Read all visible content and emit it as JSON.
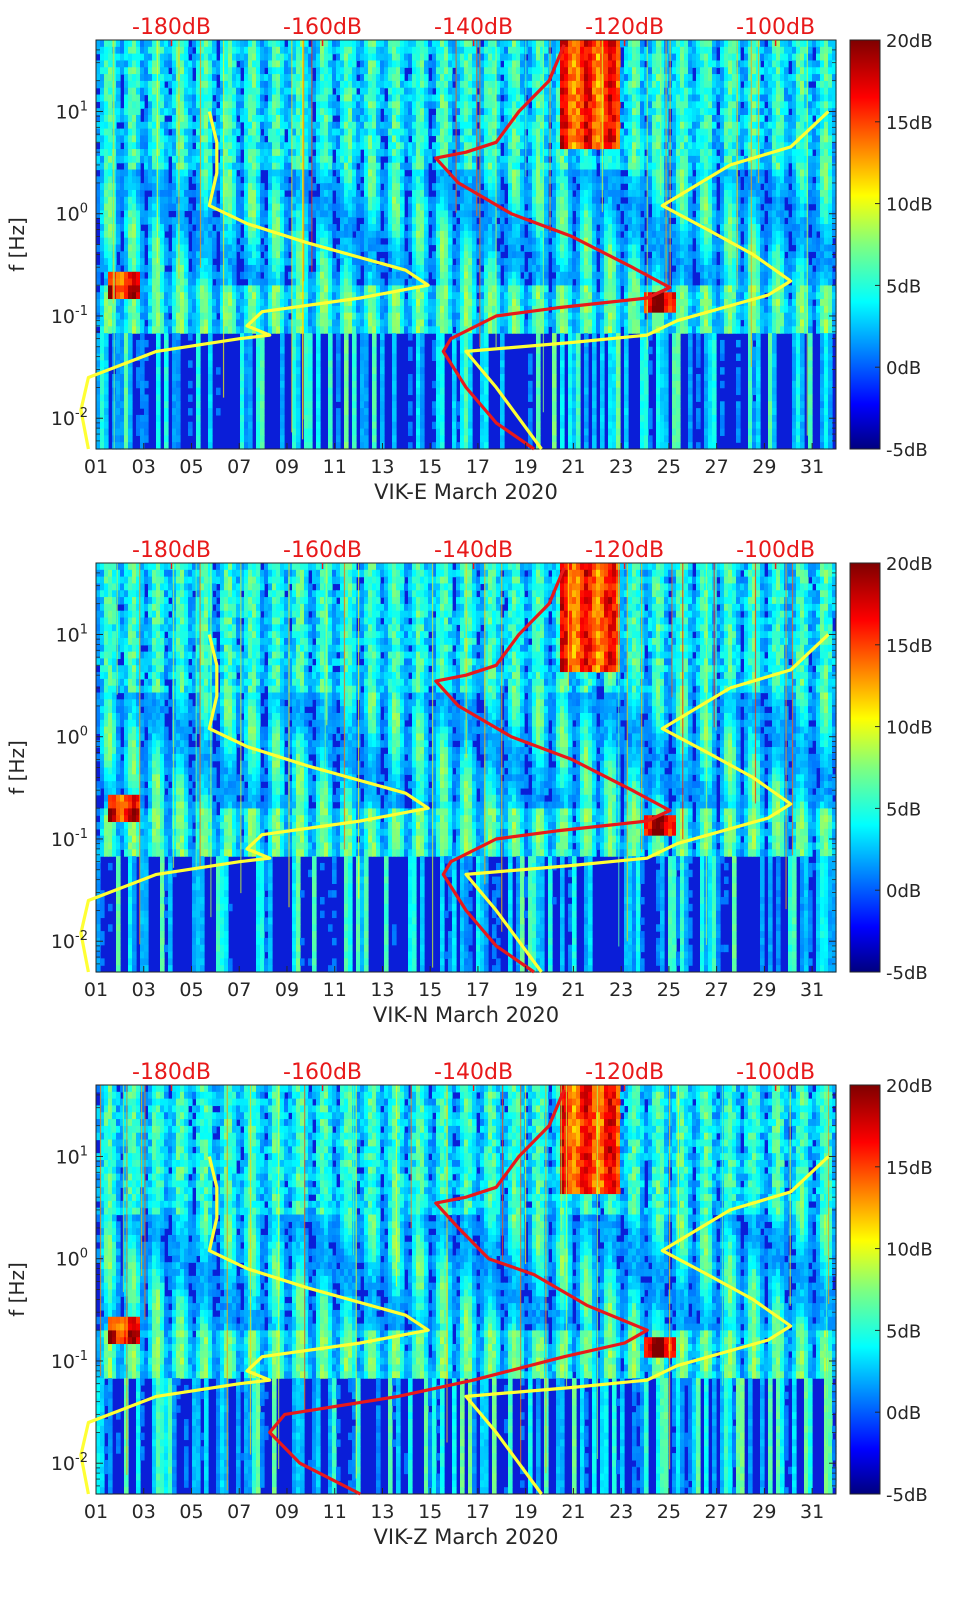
{
  "chart_data": [
    {
      "type": "heatmap",
      "station": "VIK-E",
      "xlabel": "VIK-E March 2020",
      "ylabel": "f [Hz]",
      "x_ticks": [
        "01",
        "03",
        "05",
        "07",
        "09",
        "11",
        "13",
        "15",
        "17",
        "19",
        "21",
        "23",
        "25",
        "27",
        "29",
        "31"
      ],
      "x_range_days": [
        1,
        32
      ],
      "y_scale": "log",
      "y_ticks": [
        "10^-2",
        "10^-1",
        "10^0",
        "10^1"
      ],
      "y_range_hz": [
        0.005,
        50
      ],
      "colorbar": {
        "ticks": [
          "-5dB",
          "0dB",
          "5dB",
          "10dB",
          "15dB",
          "20dB"
        ],
        "range_db": [
          -5,
          20
        ],
        "colormap": "jet"
      },
      "top_axis_ticks": [
        "-180dB",
        "-160dB",
        "-140dB",
        "-120dB",
        "-100dB"
      ],
      "top_axis_range_db": [
        -190,
        -92
      ],
      "top_axis_color": "#e8191a",
      "curves": [
        {
          "color": "#ffff33",
          "points_db_hz": [
            [
              -191,
              0.005
            ],
            [
              -192,
              0.012
            ],
            [
              -191,
              0.025
            ],
            [
              -182,
              0.045
            ],
            [
              -171,
              0.06
            ],
            [
              -167,
              0.065
            ],
            [
              -170,
              0.08
            ],
            [
              -168,
              0.11
            ],
            [
              -155,
              0.15
            ],
            [
              -146,
              0.2
            ],
            [
              -149,
              0.28
            ],
            [
              -162,
              0.52
            ],
            [
              -170,
              0.8
            ],
            [
              -175,
              1.2
            ],
            [
              -174,
              2.5
            ],
            [
              -174,
              5.0
            ],
            [
              -175,
              10.0
            ]
          ]
        },
        {
          "color": "#ffff33",
          "points_db_hz": [
            [
              -131,
              0.005
            ],
            [
              -137,
              0.02
            ],
            [
              -141,
              0.045
            ],
            [
              -127,
              0.055
            ],
            [
              -117,
              0.065
            ],
            [
              -113,
              0.09
            ],
            [
              -101,
              0.16
            ],
            [
              -98,
              0.22
            ],
            [
              -103,
              0.4
            ],
            [
              -109,
              0.7
            ],
            [
              -115,
              1.2
            ],
            [
              -106,
              3.0
            ],
            [
              -98,
              4.5
            ],
            [
              -93,
              10.0
            ]
          ]
        },
        {
          "color": "#e8191a",
          "points_db_hz": [
            [
              -132,
              0.005
            ],
            [
              -137,
              0.009
            ],
            [
              -141,
              0.02
            ],
            [
              -144,
              0.045
            ],
            [
              -143,
              0.06
            ],
            [
              -137,
              0.1
            ],
            [
              -129,
              0.12
            ],
            [
              -117,
              0.15
            ],
            [
              -114,
              0.19
            ],
            [
              -119,
              0.3
            ],
            [
              -127,
              0.6
            ],
            [
              -135,
              1.0
            ],
            [
              -142,
              2.0
            ],
            [
              -145,
              3.5
            ],
            [
              -141,
              4.0
            ],
            [
              -137,
              5.0
            ],
            [
              -134,
              10.0
            ],
            [
              -130,
              20.0
            ],
            [
              -128,
              45.0
            ]
          ]
        }
      ]
    },
    {
      "type": "heatmap",
      "station": "VIK-N",
      "xlabel": "VIK-N March 2020",
      "ylabel": "f [Hz]",
      "x_ticks": [
        "01",
        "03",
        "05",
        "07",
        "09",
        "11",
        "13",
        "15",
        "17",
        "19",
        "21",
        "23",
        "25",
        "27",
        "29",
        "31"
      ],
      "x_range_days": [
        1,
        32
      ],
      "y_scale": "log",
      "y_ticks": [
        "10^-2",
        "10^-1",
        "10^0",
        "10^1"
      ],
      "y_range_hz": [
        0.005,
        50
      ],
      "colorbar": {
        "ticks": [
          "-5dB",
          "0dB",
          "5dB",
          "10dB",
          "15dB",
          "20dB"
        ],
        "range_db": [
          -5,
          20
        ],
        "colormap": "jet"
      },
      "top_axis_ticks": [
        "-180dB",
        "-160dB",
        "-140dB",
        "-120dB",
        "-100dB"
      ],
      "top_axis_range_db": [
        -190,
        -92
      ],
      "top_axis_color": "#e8191a",
      "curves": [
        {
          "color": "#ffff33",
          "points_db_hz": [
            [
              -191,
              0.005
            ],
            [
              -192,
              0.012
            ],
            [
              -191,
              0.025
            ],
            [
              -182,
              0.045
            ],
            [
              -171,
              0.06
            ],
            [
              -167,
              0.065
            ],
            [
              -170,
              0.08
            ],
            [
              -168,
              0.11
            ],
            [
              -155,
              0.15
            ],
            [
              -146,
              0.2
            ],
            [
              -149,
              0.28
            ],
            [
              -162,
              0.52
            ],
            [
              -170,
              0.8
            ],
            [
              -175,
              1.2
            ],
            [
              -174,
              2.5
            ],
            [
              -174,
              5.0
            ],
            [
              -175,
              10.0
            ]
          ]
        },
        {
          "color": "#ffff33",
          "points_db_hz": [
            [
              -131,
              0.005
            ],
            [
              -137,
              0.02
            ],
            [
              -141,
              0.045
            ],
            [
              -127,
              0.055
            ],
            [
              -117,
              0.065
            ],
            [
              -113,
              0.09
            ],
            [
              -101,
              0.16
            ],
            [
              -98,
              0.22
            ],
            [
              -103,
              0.4
            ],
            [
              -109,
              0.7
            ],
            [
              -115,
              1.2
            ],
            [
              -106,
              3.0
            ],
            [
              -98,
              4.5
            ],
            [
              -93,
              10.0
            ]
          ]
        },
        {
          "color": "#e8191a",
          "points_db_hz": [
            [
              -132,
              0.005
            ],
            [
              -137,
              0.009
            ],
            [
              -141,
              0.02
            ],
            [
              -144,
              0.045
            ],
            [
              -143,
              0.06
            ],
            [
              -137,
              0.1
            ],
            [
              -129,
              0.12
            ],
            [
              -117,
              0.15
            ],
            [
              -114,
              0.19
            ],
            [
              -119,
              0.3
            ],
            [
              -127,
              0.6
            ],
            [
              -135,
              1.0
            ],
            [
              -142,
              2.0
            ],
            [
              -145,
              3.5
            ],
            [
              -141,
              4.0
            ],
            [
              -137,
              5.0
            ],
            [
              -134,
              10.0
            ],
            [
              -130,
              20.0
            ],
            [
              -128,
              45.0
            ]
          ]
        }
      ]
    },
    {
      "type": "heatmap",
      "station": "VIK-Z",
      "xlabel": "VIK-Z March 2020",
      "ylabel": "f [Hz]",
      "x_ticks": [
        "01",
        "03",
        "05",
        "07",
        "09",
        "11",
        "13",
        "15",
        "17",
        "19",
        "21",
        "23",
        "25",
        "27",
        "29",
        "31"
      ],
      "x_range_days": [
        1,
        32
      ],
      "y_scale": "log",
      "y_ticks": [
        "10^-2",
        "10^-1",
        "10^0",
        "10^1"
      ],
      "y_range_hz": [
        0.005,
        50
      ],
      "colorbar": {
        "ticks": [
          "-5dB",
          "0dB",
          "5dB",
          "10dB",
          "15dB",
          "20dB"
        ],
        "range_db": [
          -5,
          20
        ],
        "colormap": "jet"
      },
      "top_axis_ticks": [
        "-180dB",
        "-160dB",
        "-140dB",
        "-120dB",
        "-100dB"
      ],
      "top_axis_range_db": [
        -190,
        -92
      ],
      "top_axis_color": "#e8191a",
      "curves": [
        {
          "color": "#ffff33",
          "points_db_hz": [
            [
              -191,
              0.005
            ],
            [
              -192,
              0.012
            ],
            [
              -191,
              0.025
            ],
            [
              -182,
              0.045
            ],
            [
              -171,
              0.06
            ],
            [
              -167,
              0.065
            ],
            [
              -170,
              0.08
            ],
            [
              -168,
              0.11
            ],
            [
              -155,
              0.15
            ],
            [
              -146,
              0.2
            ],
            [
              -149,
              0.28
            ],
            [
              -162,
              0.52
            ],
            [
              -170,
              0.8
            ],
            [
              -175,
              1.2
            ],
            [
              -174,
              2.5
            ],
            [
              -174,
              5.0
            ],
            [
              -175,
              10.0
            ]
          ]
        },
        {
          "color": "#ffff33",
          "points_db_hz": [
            [
              -131,
              0.005
            ],
            [
              -137,
              0.02
            ],
            [
              -141,
              0.045
            ],
            [
              -127,
              0.055
            ],
            [
              -117,
              0.065
            ],
            [
              -113,
              0.09
            ],
            [
              -101,
              0.16
            ],
            [
              -98,
              0.22
            ],
            [
              -103,
              0.4
            ],
            [
              -109,
              0.7
            ],
            [
              -115,
              1.2
            ],
            [
              -106,
              3.0
            ],
            [
              -98,
              4.5
            ],
            [
              -93,
              10.0
            ]
          ]
        },
        {
          "color": "#e8191a",
          "points_db_hz": [
            [
              -155,
              0.005
            ],
            [
              -163,
              0.01
            ],
            [
              -167,
              0.02
            ],
            [
              -165,
              0.03
            ],
            [
              -150,
              0.045
            ],
            [
              -140,
              0.065
            ],
            [
              -128,
              0.11
            ],
            [
              -120,
              0.15
            ],
            [
              -117,
              0.2
            ],
            [
              -125,
              0.35
            ],
            [
              -132,
              0.7
            ],
            [
              -138,
              1.0
            ],
            [
              -142,
              2.0
            ],
            [
              -145,
              3.5
            ],
            [
              -141,
              4.0
            ],
            [
              -137,
              5.0
            ],
            [
              -134,
              10.0
            ],
            [
              -130,
              20.0
            ],
            [
              -128,
              45.0
            ]
          ]
        }
      ]
    }
  ]
}
